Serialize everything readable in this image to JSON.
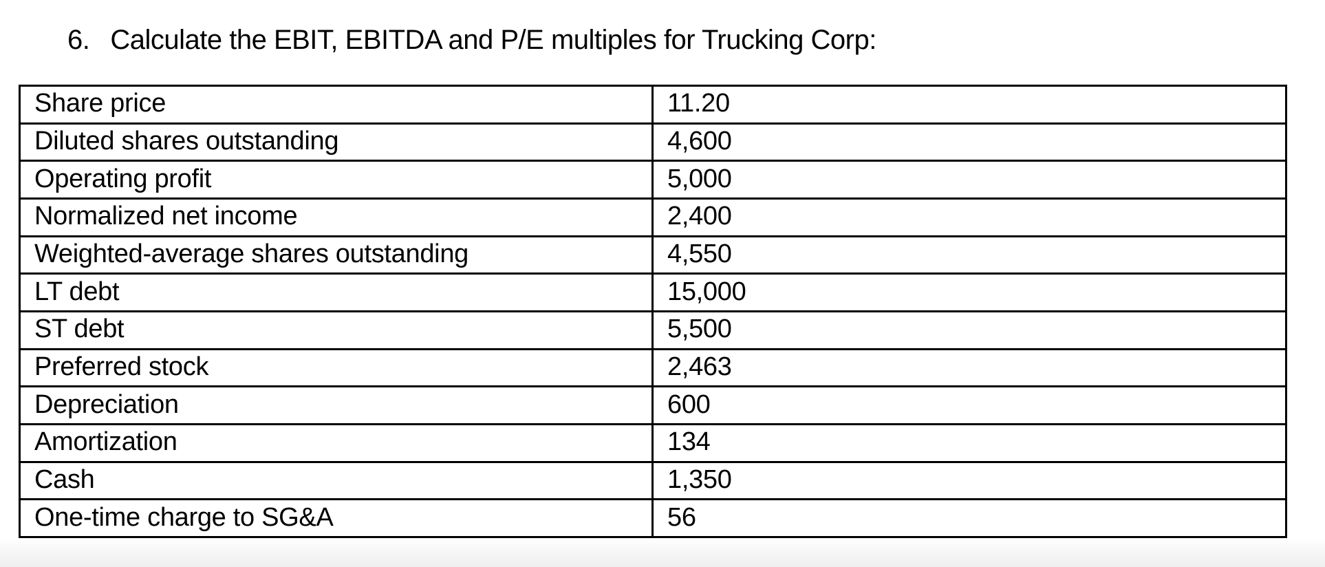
{
  "page": {
    "question_number": "6.",
    "question_text": "Calculate the EBIT, EBITDA and P/E multiples for Trucking Corp:"
  },
  "table": {
    "border_color": "#000000",
    "rows": [
      {
        "label": "Share price",
        "value": "11.20"
      },
      {
        "label": "Diluted shares outstanding",
        "value": "4,600"
      },
      {
        "label": "Operating profit",
        "value": "5,000"
      },
      {
        "label": "Normalized net income",
        "value": "2,400"
      },
      {
        "label": "Weighted-average shares outstanding",
        "value": "4,550"
      },
      {
        "label": "LT debt",
        "value": "15,000"
      },
      {
        "label": "ST debt",
        "value": "5,500"
      },
      {
        "label": "Preferred stock",
        "value": "2,463"
      },
      {
        "label": "Depreciation",
        "value": "600"
      },
      {
        "label": "Amortization",
        "value": "134"
      },
      {
        "label": "Cash",
        "value": "1,350"
      },
      {
        "label": "One-time charge to SG&A",
        "value": "56"
      }
    ]
  }
}
